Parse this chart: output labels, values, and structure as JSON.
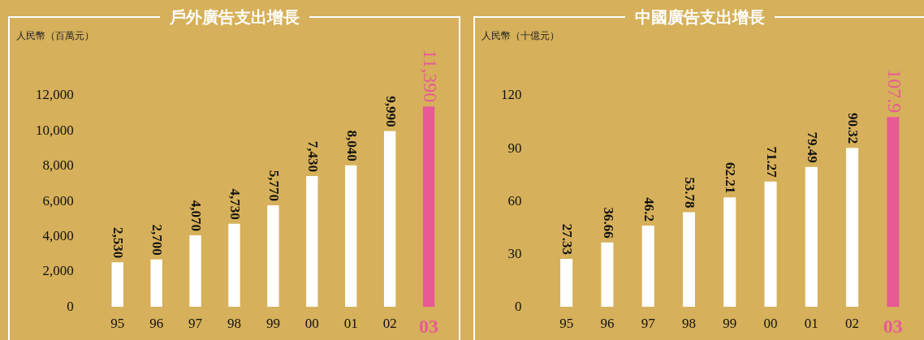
{
  "chart_data": [
    {
      "type": "bar",
      "title": "戶外廣告支出增長",
      "ylabel": "人民幣（百萬元）",
      "categories": [
        "95",
        "96",
        "97",
        "98",
        "99",
        "00",
        "01",
        "02",
        "03"
      ],
      "values": [
        2530,
        2700,
        4070,
        4730,
        5770,
        7430,
        8040,
        9990,
        11390
      ],
      "colors": [
        "#ffffff",
        "#ffffff",
        "#ffffff",
        "#ffffff",
        "#ffffff",
        "#ffffff",
        "#ffffff",
        "#ffffff",
        "#e85a96"
      ],
      "value_labels": [
        "2,530",
        "2,700",
        "4,070",
        "4,730",
        "5,770",
        "7,430",
        "8,040",
        "9,990",
        "11,390"
      ],
      "ylim": [
        0,
        12000
      ],
      "yticks": [
        {
          "value": 0,
          "label": "0"
        },
        {
          "value": 2000,
          "label": "2,000"
        },
        {
          "value": 4000,
          "label": "4,000"
        },
        {
          "value": 6000,
          "label": "6,000"
        },
        {
          "value": 8000,
          "label": "8,000"
        },
        {
          "value": 10000,
          "label": "10,000"
        },
        {
          "value": 12000,
          "label": "12,000"
        }
      ],
      "grid": false,
      "legend": false
    },
    {
      "type": "bar",
      "title": "中國廣告支出增長",
      "ylabel": "人民幣（十億元）",
      "categories": [
        "95",
        "96",
        "97",
        "98",
        "99",
        "00",
        "01",
        "02",
        "03"
      ],
      "values": [
        27.33,
        36.66,
        46.2,
        53.78,
        62.21,
        71.27,
        79.49,
        90.32,
        107.9
      ],
      "colors": [
        "#ffffff",
        "#ffffff",
        "#ffffff",
        "#ffffff",
        "#ffffff",
        "#ffffff",
        "#ffffff",
        "#ffffff",
        "#e85a96"
      ],
      "value_labels": [
        "27.33",
        "36.66",
        "46.2",
        "53.78",
        "62.21",
        "71.27",
        "79.49",
        "90.32",
        "107.9"
      ],
      "ylim": [
        0,
        120
      ],
      "yticks": [
        0,
        30,
        60,
        90,
        120
      ],
      "grid": false,
      "legend": false
    }
  ]
}
